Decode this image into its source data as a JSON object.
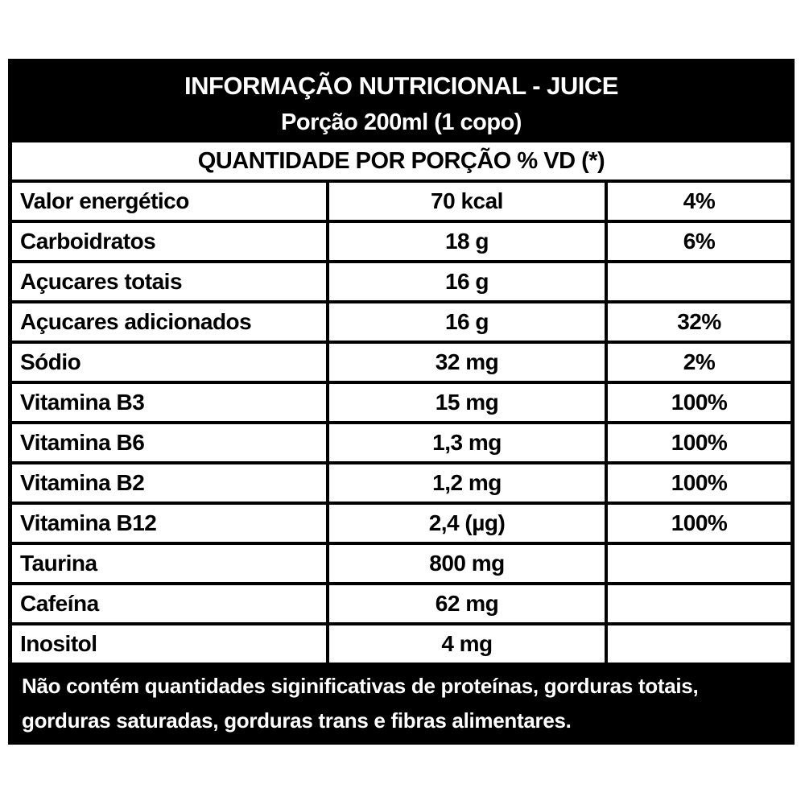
{
  "label": {
    "title": "INFORMAÇÃO NUTRICIONAL - JUICE",
    "serving": "Porção 200ml (1 copo)",
    "quantity_header": "QUANTIDADE POR PORÇÃO % VD (*)",
    "rows": [
      {
        "nutrient": "Valor energético",
        "amount": "70 kcal",
        "dv": "4%"
      },
      {
        "nutrient": "Carboidratos",
        "amount": "18 g",
        "dv": "6%"
      },
      {
        "nutrient": "Açucares totais",
        "amount": "16 g",
        "dv": ""
      },
      {
        "nutrient": "Açucares adicionados",
        "amount": "16 g",
        "dv": "32%"
      },
      {
        "nutrient": "Sódio",
        "amount": "32 mg",
        "dv": "2%"
      },
      {
        "nutrient": "Vitamina B3",
        "amount": "15 mg",
        "dv": "100%"
      },
      {
        "nutrient": "Vitamina B6",
        "amount": "1,3 mg",
        "dv": "100%"
      },
      {
        "nutrient": "Vitamina B2",
        "amount": "1,2 mg",
        "dv": "100%"
      },
      {
        "nutrient": "Vitamina B12",
        "amount": "2,4 (µg)",
        "dv": "100%"
      },
      {
        "nutrient": "Taurina",
        "amount": "800 mg",
        "dv": ""
      },
      {
        "nutrient": "Cafeína",
        "amount": "62 mg",
        "dv": ""
      },
      {
        "nutrient": "Inositol",
        "amount": "4 mg",
        "dv": ""
      }
    ],
    "footnote_lines": [
      "Não contém quantidades siginificativas de proteínas, gorduras totais,",
      "gorduras saturadas, gorduras trans e fibras alimentares."
    ]
  },
  "colors": {
    "ink": "#000000",
    "paper": "#ffffff"
  }
}
